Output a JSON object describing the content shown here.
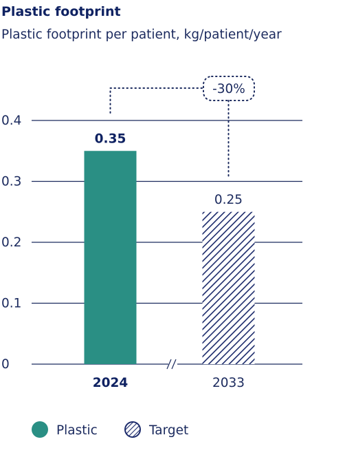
{
  "title": "Plastic footprint",
  "subtitle": "Plastic footprint per patient, kg/patient/year",
  "colors": {
    "plastic": "#2a8f84",
    "target": "#1b2a6b",
    "text": "#1b2a5e",
    "grid": "#1b2a5e"
  },
  "chart_data": {
    "type": "bar",
    "title": "Plastic footprint",
    "subtitle": "Plastic footprint per patient, kg/patient/year",
    "categories": [
      "2024",
      "2033"
    ],
    "series": [
      {
        "name": "Plastic",
        "values": [
          0.35,
          null
        ]
      },
      {
        "name": "Target",
        "values": [
          null,
          0.25
        ]
      }
    ],
    "data_labels": [
      "0.35",
      "0.25"
    ],
    "yticks": [
      0,
      0.1,
      0.2,
      0.3,
      0.4
    ],
    "ytick_labels": [
      "0",
      "0.1",
      "0.2",
      "0.3",
      "0.4"
    ],
    "ylim": [
      0,
      0.4
    ],
    "grid": true,
    "axis_break": true,
    "annotation": {
      "text": "-30%",
      "from": "2024",
      "to": "2033"
    },
    "legend": {
      "position": "bottom",
      "items": [
        {
          "label": "Plastic",
          "style": "solid"
        },
        {
          "label": "Target",
          "style": "hatched"
        }
      ]
    }
  }
}
